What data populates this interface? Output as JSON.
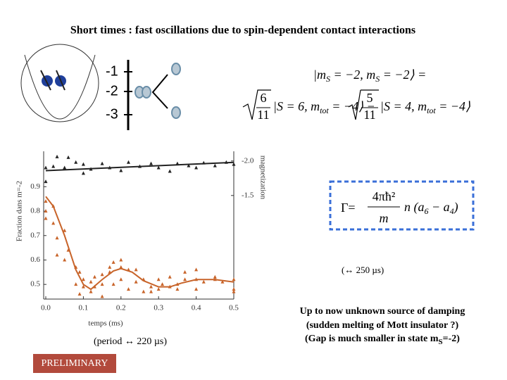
{
  "slide": {
    "title": "Short times : fast oscillations due to spin-dependent contact interactions",
    "levels": [
      "-1",
      "-2",
      "-3"
    ],
    "state_lhs": [
      "|m",
      "S",
      " = −2, m",
      "S",
      " = −2⟩ ="
    ],
    "state_rhs": {
      "coef1": [
        "6",
        "11"
      ],
      "ket1": [
        "|S = 6, m",
        "tot",
        " = −4⟩ −"
      ],
      "coef2": [
        "5",
        "11"
      ],
      "ket2": [
        "|S = 4, m",
        "tot",
        " = −4⟩"
      ]
    },
    "gamma": {
      "lhs": "Γ=",
      "num": "4πħ²",
      "den": "m",
      "rhs": [
        "n (a",
        "6",
        " − a",
        "4",
        ")"
      ]
    },
    "decay_note": "(↔ 250 µs)",
    "damping": [
      "Up to now unknown source of damping",
      "(sudden melting of Mott insulator ?)",
      [
        "(Gap is much smaller in state m",
        "S",
        "=-2)"
      ]
    ],
    "period_note": "(period ↔ 220 µs)",
    "badge": "PRELIMINARY"
  },
  "chart_data": {
    "type": "scatter",
    "xlabel": "temps (ms)",
    "ylabel": "Fraction dans m=-2",
    "y2label": "magnetization",
    "xlim": [
      0,
      0.5
    ],
    "xticks": [
      {
        "value": 0,
        "label": "0.0"
      },
      0.1,
      0.2,
      0.3,
      0.4,
      0.5
    ],
    "ylim": [
      0.44,
      1.045
    ],
    "yticks": [
      0.5,
      0.6,
      0.7,
      0.8,
      0.9
    ],
    "y2lim": [
      0,
      -2.14
    ],
    "y2ticks": [
      {
        "value": -2,
        "label": "-2.0"
      },
      -1.5
    ],
    "series": [
      {
        "mode": "markers",
        "color": "#c8642a",
        "x": [
          0,
          0,
          0,
          0.02,
          0.02,
          0.03,
          0.03,
          0.05,
          0.05,
          0.06,
          0.08,
          0.08,
          0.09,
          0.09,
          0.1,
          0.1,
          0.12,
          0.12,
          0.13,
          0.13,
          0.15,
          0.15,
          0.15,
          0.17,
          0.17,
          0.18,
          0.18,
          0.2,
          0.2,
          0.2,
          0.22,
          0.22,
          0.24,
          0.24,
          0.26,
          0.26,
          0.28,
          0.28,
          0.3,
          0.3,
          0.31,
          0.33,
          0.33,
          0.35,
          0.35,
          0.37,
          0.37,
          0.4,
          0.4,
          0.4,
          0.42,
          0.45,
          0.45,
          0.47,
          0.5,
          0.5,
          0.5
        ],
        "values": [
          0.8,
          0.84,
          0.77,
          0.82,
          0.75,
          0.69,
          0.62,
          0.72,
          0.6,
          0.64,
          0.57,
          0.5,
          0.46,
          0.55,
          0.49,
          0.52,
          0.47,
          0.51,
          0.49,
          0.53,
          0.54,
          0.5,
          0.45,
          0.55,
          0.57,
          0.5,
          0.59,
          0.57,
          0.52,
          0.6,
          0.56,
          0.48,
          0.56,
          0.51,
          0.52,
          0.47,
          0.49,
          0.47,
          0.52,
          0.48,
          0.5,
          0.49,
          0.53,
          0.48,
          0.5,
          0.52,
          0.55,
          0.52,
          0.48,
          0.56,
          0.51,
          0.53,
          0.52,
          0.51,
          0.52,
          0.47,
          0.48
        ]
      },
      {
        "mode": "line",
        "color": "#c8642a",
        "x": [
          0,
          0.02,
          0.05,
          0.08,
          0.1,
          0.12,
          0.15,
          0.18,
          0.2,
          0.23,
          0.26,
          0.3,
          0.33,
          0.36,
          0.4,
          0.45,
          0.5
        ],
        "values": [
          0.86,
          0.82,
          0.7,
          0.56,
          0.5,
          0.48,
          0.52,
          0.555,
          0.565,
          0.55,
          0.515,
          0.49,
          0.49,
          0.505,
          0.52,
          0.52,
          0.51
        ]
      },
      {
        "mode": "markers",
        "color": "#222222",
        "axis": "y2",
        "x": [
          0,
          0,
          0.02,
          0.03,
          0.05,
          0.06,
          0.08,
          0.1,
          0.1,
          0.12,
          0.15,
          0.17,
          0.2,
          0.22,
          0.25,
          0.28,
          0.3,
          0.33,
          0.35,
          0.38,
          0.4,
          0.42,
          0.45,
          0.48,
          0.5
        ],
        "values": [
          -1.9,
          -1.7,
          -1.92,
          -2.06,
          -1.9,
          -2.05,
          -1.98,
          -1.95,
          -1.82,
          -1.88,
          -1.96,
          -1.9,
          -1.86,
          -1.98,
          -1.92,
          -1.96,
          -1.9,
          -1.85,
          -1.96,
          -1.93,
          -1.9,
          -1.97,
          -1.93,
          -1.98,
          -1.95
        ]
      },
      {
        "mode": "line",
        "color": "#222222",
        "axis": "y2",
        "x": [
          0,
          0.5
        ],
        "values": [
          -1.86,
          -1.98
        ]
      }
    ]
  }
}
